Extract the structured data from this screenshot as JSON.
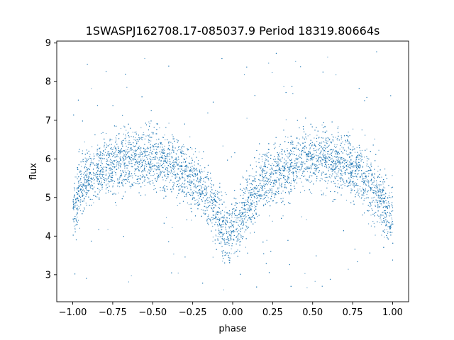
{
  "chart_data": {
    "type": "scatter",
    "title": "1SWASPJ162708.17-085037.9 Period 18319.80664s",
    "xlabel": "phase",
    "ylabel": "flux",
    "xlim": [
      -1.1,
      1.1
    ],
    "ylim": [
      2.3,
      9.05
    ],
    "x_ticks": [
      -1.0,
      -0.75,
      -0.5,
      -0.25,
      0.0,
      0.25,
      0.5,
      0.75,
      1.0
    ],
    "x_tick_labels": [
      "−1.00",
      "−0.75",
      "−0.50",
      "−0.25",
      "0.00",
      "0.25",
      "0.50",
      "0.75",
      "1.00"
    ],
    "y_ticks": [
      3,
      4,
      5,
      6,
      7,
      8,
      9
    ],
    "y_tick_labels": [
      "3",
      "4",
      "5",
      "6",
      "7",
      "8",
      "9"
    ],
    "grid": false,
    "point_color": "#1f77b4",
    "series": [
      {
        "x": [
          -1.0,
          -0.95,
          -0.9,
          -0.85,
          -0.8,
          -0.75,
          -0.7,
          -0.65,
          -0.6,
          -0.55,
          -0.5,
          -0.45,
          -0.4,
          -0.35,
          -0.3,
          -0.25,
          -0.2,
          -0.15,
          -0.1,
          -0.05,
          0.0,
          0.05,
          0.1,
          0.15,
          0.2,
          0.25,
          0.3,
          0.35,
          0.4,
          0.45,
          0.5,
          0.55,
          0.6,
          0.65,
          0.7,
          0.75,
          0.8,
          0.85,
          0.9,
          0.95,
          1.0
        ],
        "y": [
          4.6,
          5.3,
          5.55,
          5.7,
          5.8,
          5.9,
          5.95,
          6.0,
          6.0,
          6.0,
          6.0,
          5.95,
          5.9,
          5.8,
          5.65,
          5.45,
          5.25,
          4.95,
          4.55,
          4.2,
          4.05,
          4.35,
          4.85,
          5.2,
          5.45,
          5.6,
          5.75,
          5.85,
          5.95,
          6.0,
          6.0,
          6.0,
          6.0,
          5.95,
          5.85,
          5.75,
          5.6,
          5.4,
          5.1,
          4.7,
          4.5
        ]
      }
    ]
  }
}
